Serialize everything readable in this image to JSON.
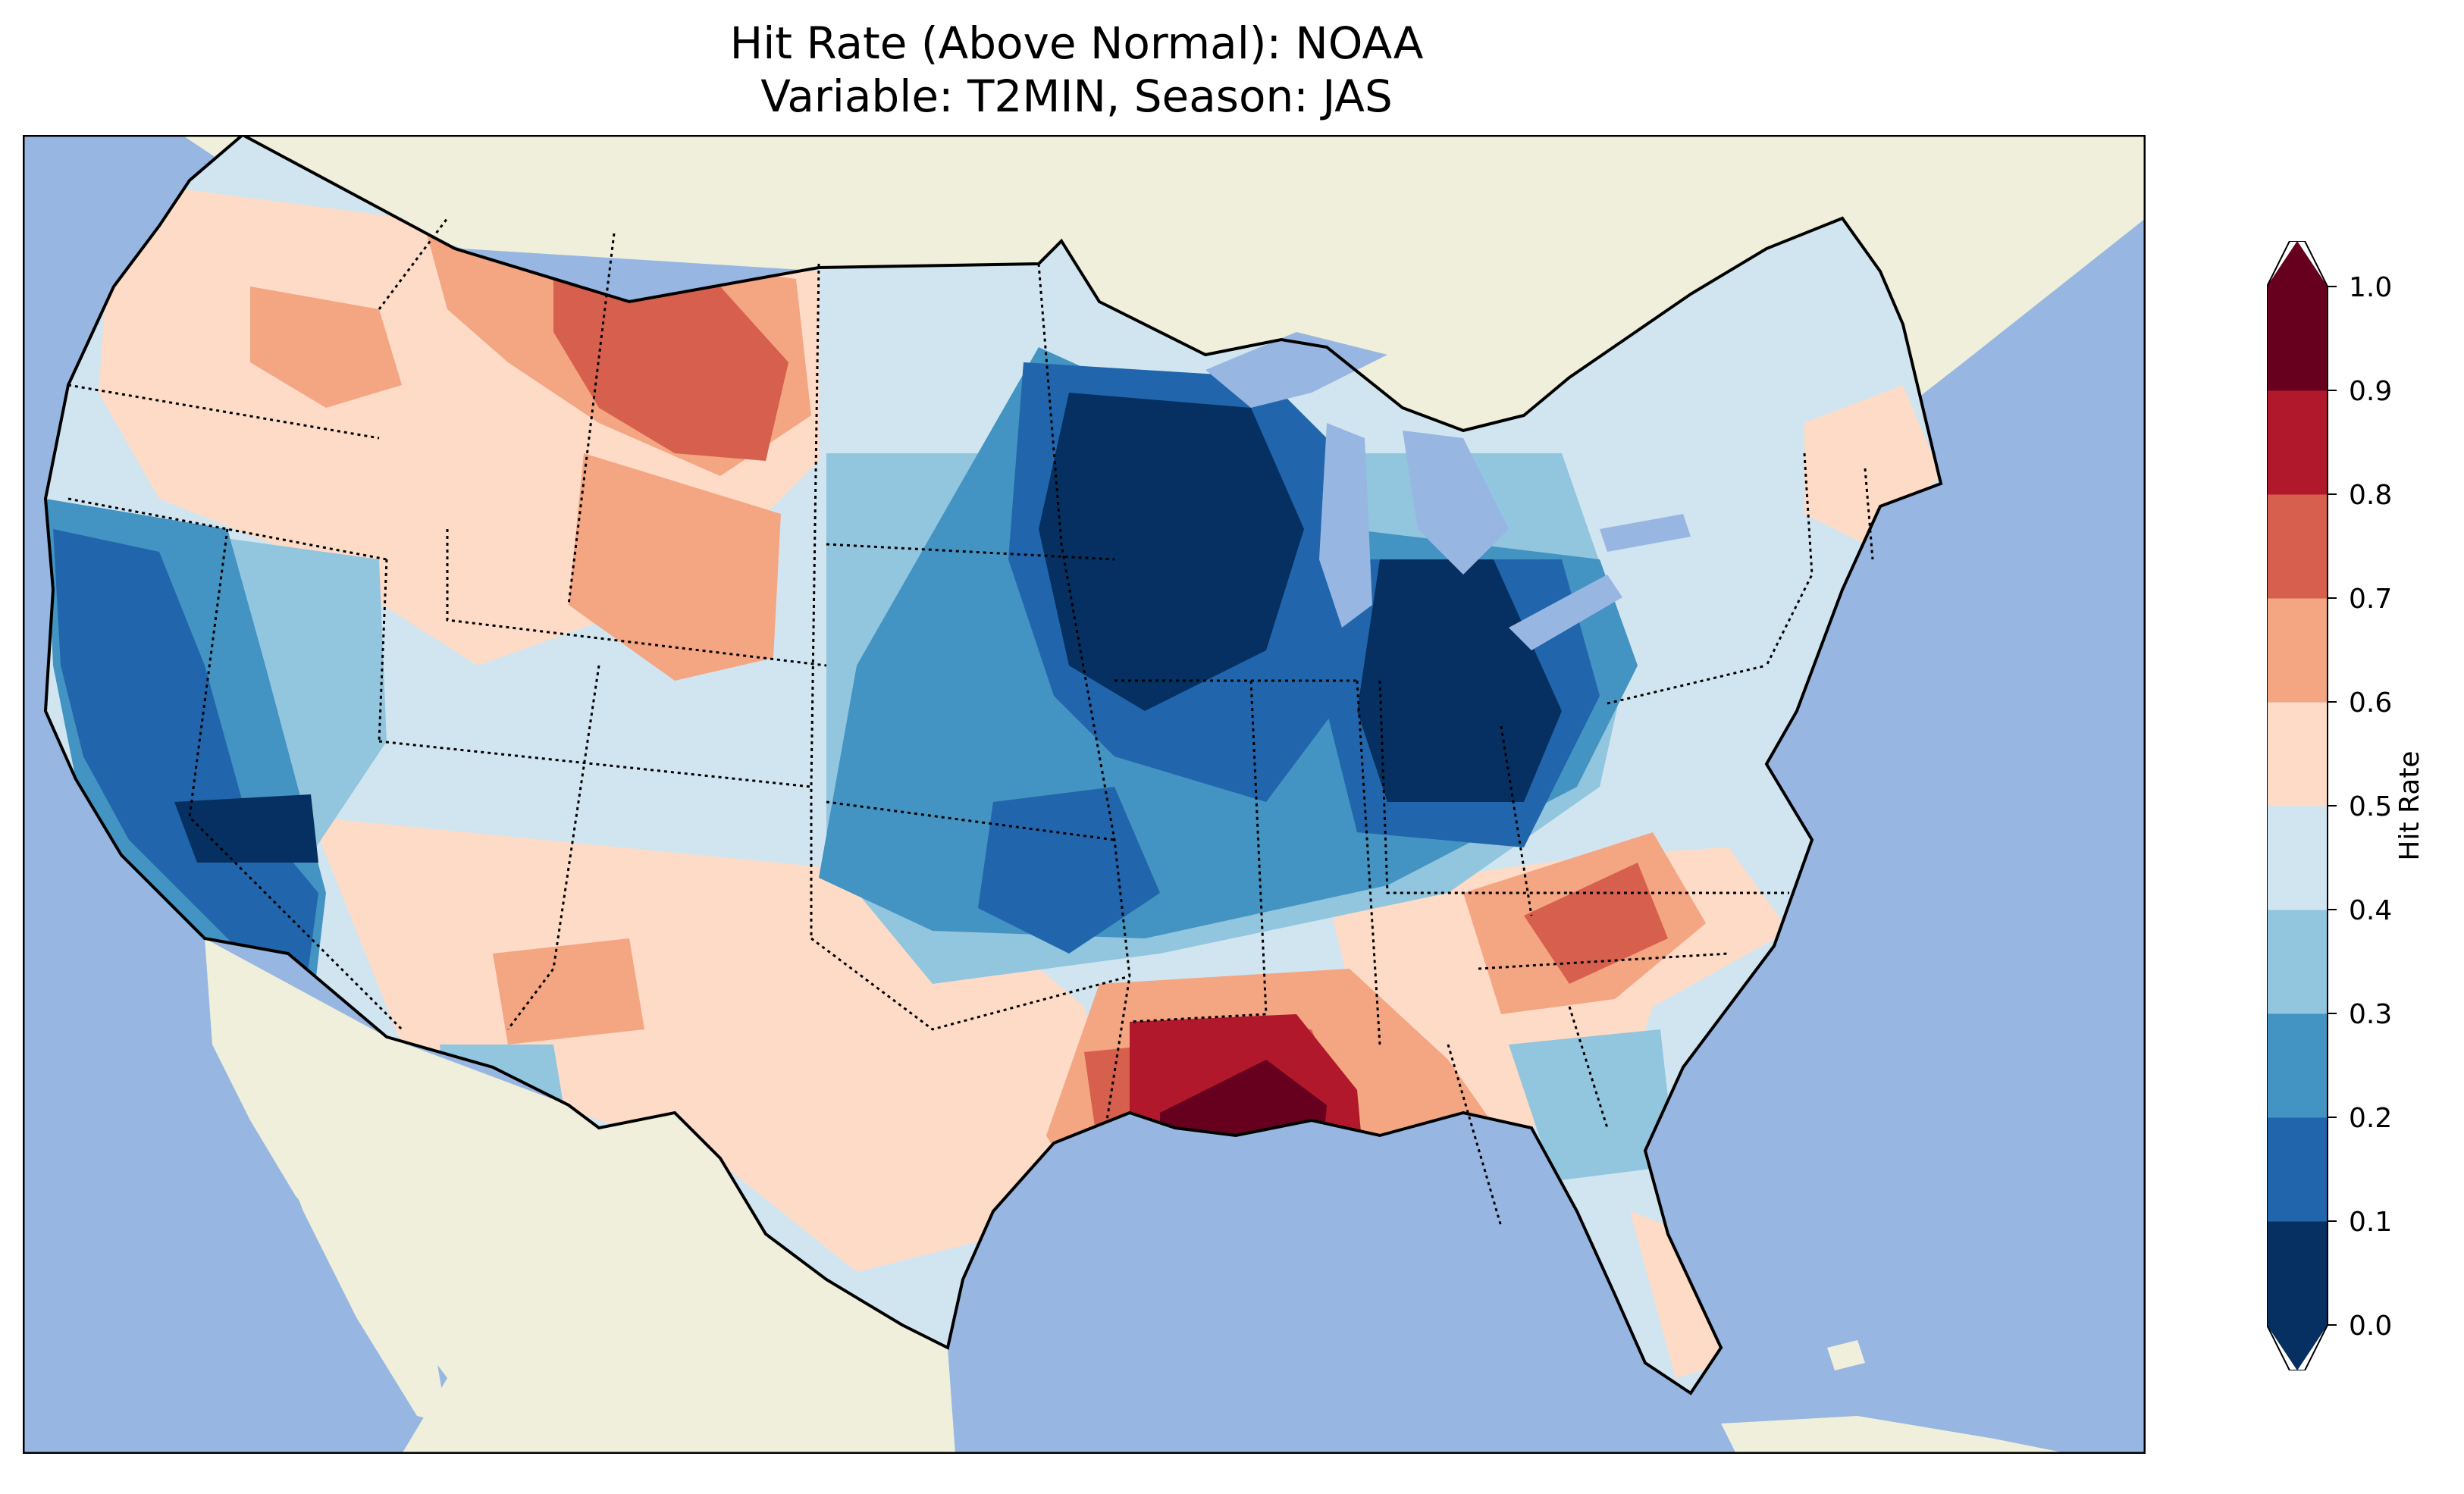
{
  "title": {
    "line1": "Hit Rate (Above Normal): NOAA",
    "line2": "Variable: T2MIN, Season: JAS"
  },
  "colors": {
    "ocean": "#97b6e1",
    "land": "#efefdb",
    "levels": [
      "#053061",
      "#2166ac",
      "#4393c3",
      "#92c5de",
      "#d1e5f0",
      "#fddbc7",
      "#f4a582",
      "#d6604d",
      "#b2182b",
      "#67001f"
    ]
  },
  "colorbar": {
    "label": "Hit Rate",
    "ticks": [
      "0.0",
      "0.1",
      "0.2",
      "0.3",
      "0.4",
      "0.5",
      "0.6",
      "0.7",
      "0.8",
      "0.9",
      "1.0"
    ],
    "extend": "both"
  }
}
